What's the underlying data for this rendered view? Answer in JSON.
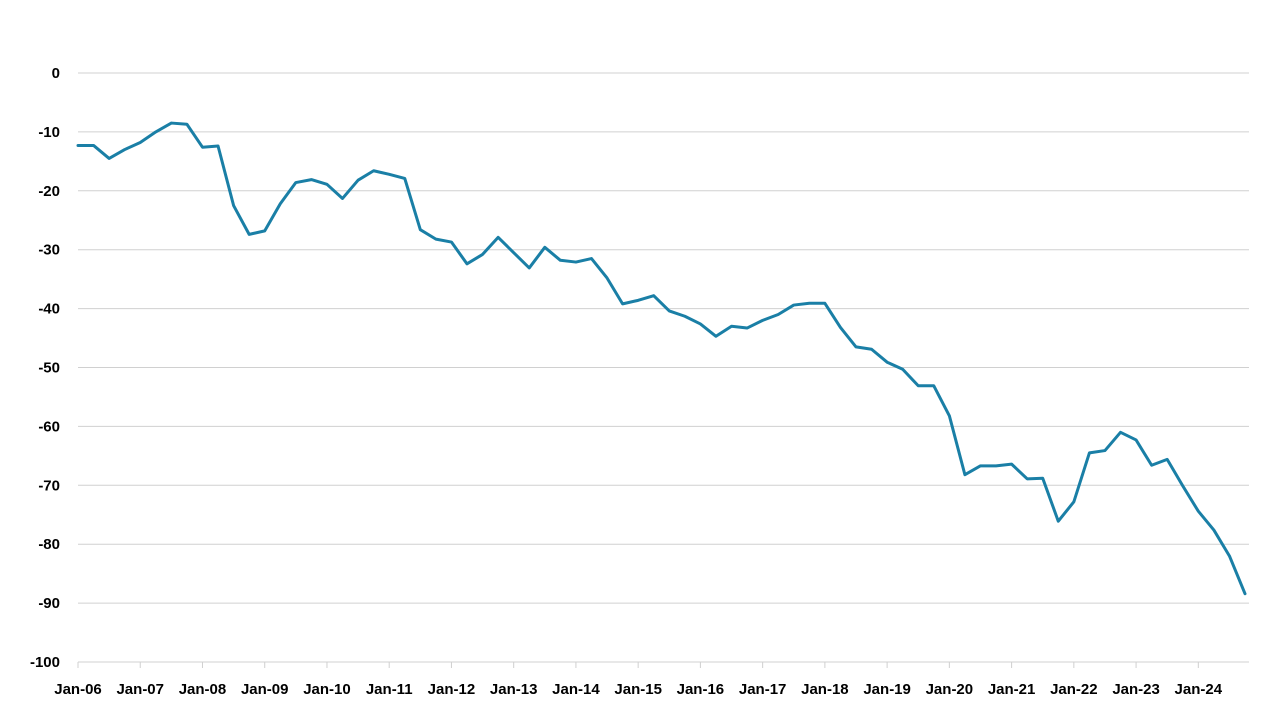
{
  "chart_data": {
    "type": "line",
    "title": "",
    "xlabel": "",
    "ylabel": "",
    "ylim": [
      -100,
      0
    ],
    "y_ticks": [
      0,
      -10,
      -20,
      -30,
      -40,
      -50,
      -60,
      -70,
      -80,
      -90,
      -100
    ],
    "y_tick_labels": [
      "0",
      "-10",
      "-20",
      "-30",
      "-40",
      "-50",
      "-60",
      "-70",
      "-80",
      "-90",
      "-100"
    ],
    "x_tick_labels": [
      "Jan-06",
      "Jan-07",
      "Jan-08",
      "Jan-09",
      "Jan-10",
      "Jan-11",
      "Jan-12",
      "Jan-13",
      "Jan-14",
      "Jan-15",
      "Jan-16",
      "Jan-17",
      "Jan-18",
      "Jan-19",
      "Jan-20",
      "Jan-21",
      "Jan-22",
      "Jan-23",
      "Jan-24"
    ],
    "grid": "horizontal",
    "legend": "none",
    "colors": {
      "series": "#1a7fa6",
      "grid": "#d0d0d0",
      "text": "#000000"
    },
    "series": [
      {
        "x": [
          "Jan-06",
          "Apr-06",
          "Jul-06",
          "Oct-06",
          "Jan-07",
          "Apr-07",
          "Jul-07",
          "Oct-07",
          "Jan-08",
          "Apr-08",
          "Jul-08",
          "Oct-08",
          "Jan-09",
          "Apr-09",
          "Jul-09",
          "Oct-09",
          "Jan-10",
          "Apr-10",
          "Jul-10",
          "Oct-10",
          "Jan-11",
          "Apr-11",
          "Jul-11",
          "Oct-11",
          "Jan-12",
          "Apr-12",
          "Jul-12",
          "Oct-12",
          "Jan-13",
          "Apr-13",
          "Jul-13",
          "Oct-13",
          "Jan-14",
          "Apr-14",
          "Jul-14",
          "Oct-14",
          "Jan-15",
          "Apr-15",
          "Jul-15",
          "Oct-15",
          "Jan-16",
          "Apr-16",
          "Jul-16",
          "Oct-16",
          "Jan-17",
          "Apr-17",
          "Jul-17",
          "Oct-17",
          "Jan-18",
          "Apr-18",
          "Jul-18",
          "Oct-18",
          "Jan-19",
          "Apr-19",
          "Jul-19",
          "Oct-19",
          "Jan-20",
          "Apr-20",
          "Jul-20",
          "Oct-20",
          "Jan-21",
          "Apr-21",
          "Jul-21",
          "Oct-21",
          "Jan-22",
          "Apr-22",
          "Jul-22",
          "Oct-22",
          "Jan-23",
          "Apr-23",
          "Jul-23",
          "Oct-23",
          "Jan-24",
          "Apr-24",
          "Jul-24",
          "Oct-24"
        ],
        "values": [
          -12.3,
          -12.3,
          -14.5,
          -13,
          -11.8,
          -10,
          -8.5,
          -8.7,
          -12.6,
          -12.4,
          -22.5,
          -27.4,
          -26.8,
          -22.2,
          -18.6,
          -18.1,
          -18.9,
          -21.3,
          -18.2,
          -16.6,
          -17.2,
          -17.9,
          -26.6,
          -28.2,
          -28.7,
          -32.4,
          -30.8,
          -27.9,
          -30.5,
          -33.1,
          -29.6,
          -31.8,
          -32.1,
          -31.5,
          -34.8,
          -39.2,
          -38.6,
          -37.8,
          -40.4,
          -41.3,
          -42.6,
          -44.7,
          -43.0,
          -43.3,
          -42.0,
          -41.0,
          -39.4,
          -39.1,
          -39.1,
          -43.2,
          -46.5,
          -46.9,
          -49.1,
          -50.3,
          -53.1,
          -53.1,
          -58.2,
          -68.2,
          -66.7,
          -66.7,
          -66.4,
          -68.9,
          -68.8,
          -76.1,
          -72.8,
          -64.5,
          -64.1,
          -61.0,
          -62.3,
          -66.6,
          -65.6,
          -70.1,
          -74.4,
          -77.6,
          -82.0,
          -88.4
        ]
      }
    ]
  }
}
